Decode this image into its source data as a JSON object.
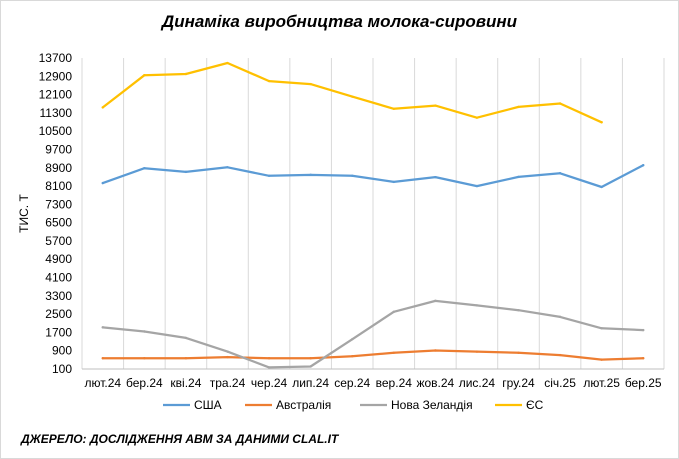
{
  "chart_data": {
    "type": "line",
    "title": "Динаміка виробництва  молока-сировини",
    "ylabel": "ТИС. Т",
    "xlabel": "",
    "ylim": [
      100,
      13700
    ],
    "yticks": [
      100,
      900,
      1700,
      2500,
      3300,
      4100,
      4900,
      5700,
      6500,
      7300,
      8100,
      8900,
      9700,
      10500,
      11300,
      12100,
      12900,
      13700
    ],
    "categories": [
      "лют.24",
      "бер.24",
      "кві.24",
      "тра.24",
      "чер.24",
      "лип.24",
      "сер.24",
      "вер.24",
      "жов.24",
      "лис.24",
      "гру.24",
      "січ.25",
      "лют.25",
      "бер.25"
    ],
    "grid": "vertical",
    "legend": "bottom",
    "series": [
      {
        "name": "США",
        "color": "#5b9bd5",
        "values": [
          8230,
          8880,
          8720,
          8920,
          8550,
          8590,
          8550,
          8280,
          8490,
          8100,
          8500,
          8660,
          8060,
          9010
        ]
      },
      {
        "name": "Австралія",
        "color": "#ed7d31",
        "values": [
          570,
          570,
          570,
          620,
          570,
          570,
          660,
          810,
          910,
          860,
          810,
          710,
          510,
          570
        ]
      },
      {
        "name": "Нова Зеландія",
        "color": "#a5a5a5",
        "values": [
          1920,
          1740,
          1460,
          860,
          170,
          210,
          1400,
          2600,
          3080,
          2880,
          2670,
          2380,
          1880,
          1800
        ]
      },
      {
        "name": "ЄС",
        "color": "#ffc000",
        "values": [
          11540,
          12950,
          13000,
          13480,
          12690,
          12560,
          12010,
          11480,
          11620,
          11090,
          11560,
          11710,
          10890,
          null
        ]
      }
    ]
  },
  "source": "ДЖЕРЕЛО: ДОСЛІДЖЕННЯ АВМ ЗА ДАНИМИ CLAL.IT"
}
